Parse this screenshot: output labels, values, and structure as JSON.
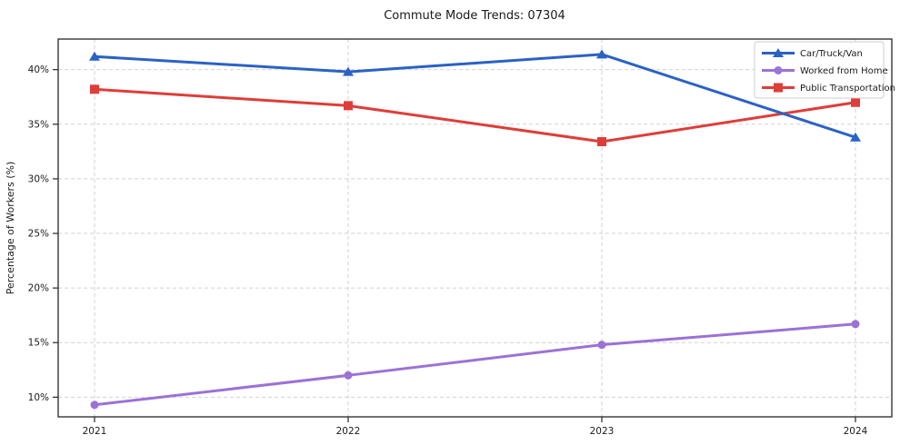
{
  "chart_data": {
    "type": "line",
    "title": "Commute Mode Trends: 07304",
    "xlabel": "",
    "ylabel": "Percentage of Workers (%)",
    "x": [
      "2021",
      "2022",
      "2023",
      "2024"
    ],
    "series": [
      {
        "name": "Car/Truck/Van",
        "color": "#2a62c6",
        "marker": "triangle",
        "values": [
          41.2,
          39.8,
          41.4,
          33.8
        ]
      },
      {
        "name": "Worked from Home",
        "color": "#9b72d6",
        "marker": "circle",
        "values": [
          9.3,
          12.0,
          14.8,
          16.7
        ]
      },
      {
        "name": "Public Transportation",
        "color": "#df3d38",
        "marker": "square",
        "values": [
          38.2,
          36.7,
          33.4,
          37.0
        ]
      }
    ],
    "yticks": [
      10,
      15,
      20,
      25,
      30,
      35,
      40
    ],
    "ytick_suffix": "%",
    "ylim": [
      8.2,
      42.8
    ],
    "grid": true,
    "grid_color": "#d2d2d2",
    "axis_color": "#262626",
    "legend_position": "top-right",
    "legend_border_color": "#cccccc",
    "background_color": "#ffffff"
  }
}
